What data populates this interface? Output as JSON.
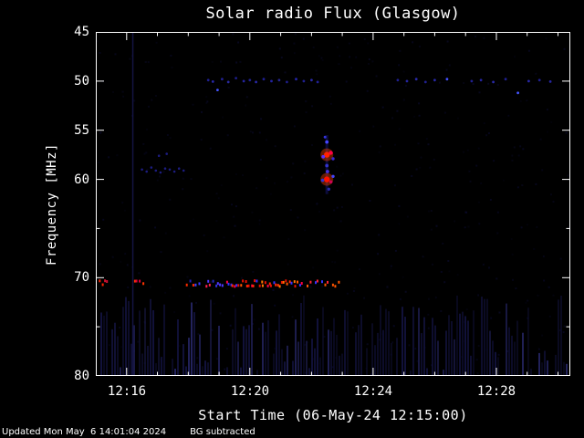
{
  "page": {
    "background": "#000000"
  },
  "chart_data": {
    "type": "heatmap",
    "subtype": "radio-spectrogram",
    "title": "Solar radio Flux (Glasgow)",
    "xlabel": "Start Time (06-May-24 12:15:00)",
    "ylabel": "Frequency [MHz]",
    "x_tick_labels": [
      "12:16",
      "12:20",
      "12:24",
      "12:28"
    ],
    "x_tick_minutes": [
      1,
      5,
      9,
      13
    ],
    "x_range_minutes": [
      0,
      15.4
    ],
    "y_tick_labels": [
      "45",
      "50",
      "55",
      "60",
      "70",
      "80"
    ],
    "y_tick_values": [
      45,
      50,
      55,
      60,
      70,
      80
    ],
    "y_minor_values": [
      65,
      75
    ],
    "y_range_mhz": [
      45,
      80
    ],
    "y_axis_inverted": true,
    "axis_color": "#ffffff",
    "background_color": "#000000",
    "features": {
      "drift_line_70mhz": {
        "frequency": 70.6,
        "description": "intermittent narrowband emission line near 70.6 MHz from 12:15 to about 12:23",
        "segments": [
          {
            "t_start": 0.08,
            "t_end": 0.4,
            "density": 12,
            "palette": [
              "#ff2200",
              "#d01030",
              "#2828c0"
            ]
          },
          {
            "t_start": 1.2,
            "t_end": 1.55,
            "density": 10,
            "palette": [
              "#ff3300",
              "#e0003a"
            ]
          },
          {
            "t_start": 2.9,
            "t_end": 3.35,
            "density": 12,
            "palette": [
              "#3434ff",
              "#ff2a00",
              "#2020b0",
              "#4040ff"
            ]
          },
          {
            "t_start": 3.5,
            "t_end": 4.15,
            "density": 12,
            "palette": [
              "#3030e0",
              "#5038ff",
              "#ff2050",
              "#2828b8"
            ]
          },
          {
            "t_start": 4.2,
            "t_end": 6.7,
            "density": 15,
            "palette": [
              "#ff2a00",
              "#ff5500",
              "#e81000",
              "#3030ff",
              "#ff0040",
              "#ff7700"
            ]
          },
          {
            "t_start": 6.8,
            "t_end": 7.95,
            "density": 9,
            "palette": [
              "#ff2233",
              "#3333ff",
              "#ff5500",
              "#30309a"
            ]
          }
        ]
      },
      "type_iii_burst": {
        "t_center_minutes": 7.5,
        "description": "bright compact burst near 12:22.5 spanning 56-61 MHz with red cores at 57.5 and 60 MHz",
        "streak": {
          "t": 7.5,
          "f0": 55.5,
          "f1": 61.5,
          "width": 3,
          "color": "#2222aa",
          "opacity": 0.35
        },
        "points": [
          {
            "t": 7.5,
            "f": 57.5,
            "c": "#ff2200",
            "r": 3.2,
            "glow": "#ff4400"
          },
          {
            "t": 7.63,
            "f": 57.3,
            "c": "#ff0044",
            "r": 2.2
          },
          {
            "t": 7.5,
            "f": 60.0,
            "c": "#ff1100",
            "r": 3.2,
            "glow": "#ff4400"
          },
          {
            "t": 7.63,
            "f": 60.25,
            "c": "#cc0055",
            "r": 1.8
          },
          {
            "t": 7.36,
            "f": 60.1,
            "c": "#3333cc",
            "r": 1.8
          },
          {
            "t": 7.5,
            "f": 56.2,
            "c": "#4444ff",
            "r": 1.9
          },
          {
            "t": 7.44,
            "f": 55.7,
            "c": "#3333dd",
            "r": 1.5
          },
          {
            "t": 7.5,
            "f": 58.6,
            "c": "#3333cc",
            "r": 1.9
          },
          {
            "t": 7.52,
            "f": 59.2,
            "c": "#4433dd",
            "r": 1.9
          },
          {
            "t": 7.56,
            "f": 61.0,
            "c": "#2a2aaa",
            "r": 1.7
          },
          {
            "t": 7.38,
            "f": 57.7,
            "c": "#5533ff",
            "r": 1.9
          },
          {
            "t": 7.7,
            "f": 57.9,
            "c": "#3a2ad0",
            "r": 1.7
          },
          {
            "t": 7.7,
            "f": 59.7,
            "c": "#4444ff",
            "r": 1.7
          }
        ]
      },
      "scatter_50mhz": {
        "description": "sparse faint blue interference dots near 50 MHz across the whole interval",
        "points": [
          [
            3.65,
            49.9,
            "#202090"
          ],
          [
            3.8,
            50.05,
            "#2828a8"
          ],
          [
            3.95,
            50.9,
            "#4455ff"
          ],
          [
            4.1,
            49.8,
            "#202090"
          ],
          [
            4.3,
            50.1,
            "#2a2aa0"
          ],
          [
            4.55,
            49.7,
            "#1d1d88"
          ],
          [
            4.8,
            50.0,
            "#2525a0"
          ],
          [
            5.0,
            49.9,
            "#202090"
          ],
          [
            5.2,
            50.1,
            "#2828a8"
          ],
          [
            5.45,
            49.8,
            "#1e1e90"
          ],
          [
            5.7,
            50.0,
            "#2222a0"
          ],
          [
            5.95,
            49.9,
            "#262690"
          ],
          [
            6.2,
            50.1,
            "#1e1e88"
          ],
          [
            6.5,
            49.8,
            "#2525a8"
          ],
          [
            6.75,
            50.0,
            "#202090"
          ],
          [
            7.0,
            49.9,
            "#2a2aa8"
          ],
          [
            7.2,
            50.1,
            "#222298"
          ],
          [
            9.8,
            49.9,
            "#202090"
          ],
          [
            10.1,
            50.0,
            "#2525a0"
          ],
          [
            10.4,
            49.8,
            "#2a2aa8"
          ],
          [
            10.7,
            50.1,
            "#202090"
          ],
          [
            11.0,
            49.9,
            "#2828a8"
          ],
          [
            11.4,
            49.8,
            "#4450ff"
          ],
          [
            12.2,
            50.0,
            "#202090"
          ],
          [
            12.5,
            49.9,
            "#2525a0"
          ],
          [
            12.9,
            50.1,
            "#2a2aa8"
          ],
          [
            13.3,
            49.8,
            "#202090"
          ],
          [
            13.7,
            51.2,
            "#4455ff"
          ],
          [
            14.05,
            50.0,
            "#2828a8"
          ],
          [
            14.4,
            49.9,
            "#202090"
          ],
          [
            14.75,
            50.05,
            "#2525a0"
          ]
        ]
      },
      "faint_band_59mhz": {
        "description": "very faint blue dotted band near 59 MHz around 12:16:30-12:18",
        "color": "#1c1c80",
        "points": [
          [
            1.5,
            59.0
          ],
          [
            1.65,
            59.2
          ],
          [
            1.8,
            58.8
          ],
          [
            1.95,
            59.1
          ],
          [
            2.05,
            57.6
          ],
          [
            2.1,
            59.3
          ],
          [
            2.25,
            58.9
          ],
          [
            2.3,
            57.4
          ],
          [
            2.4,
            59.0
          ],
          [
            2.55,
            59.2
          ],
          [
            2.7,
            58.9
          ],
          [
            2.85,
            59.1
          ]
        ]
      },
      "vertical_lines": {
        "t": [
          1.18
        ],
        "color": "#16164a"
      },
      "bottom_noise": {
        "description": "faint dark-blue vertical striping between ~72 and 80 MHz",
        "f_top_min": 71.8,
        "f_max": 80,
        "color": "#12123c",
        "bright_color": "#23235e"
      }
    }
  },
  "footer": {
    "updated": "Updated Mon May  6 14:01:04 2024",
    "bg_note": "BG subtracted"
  }
}
